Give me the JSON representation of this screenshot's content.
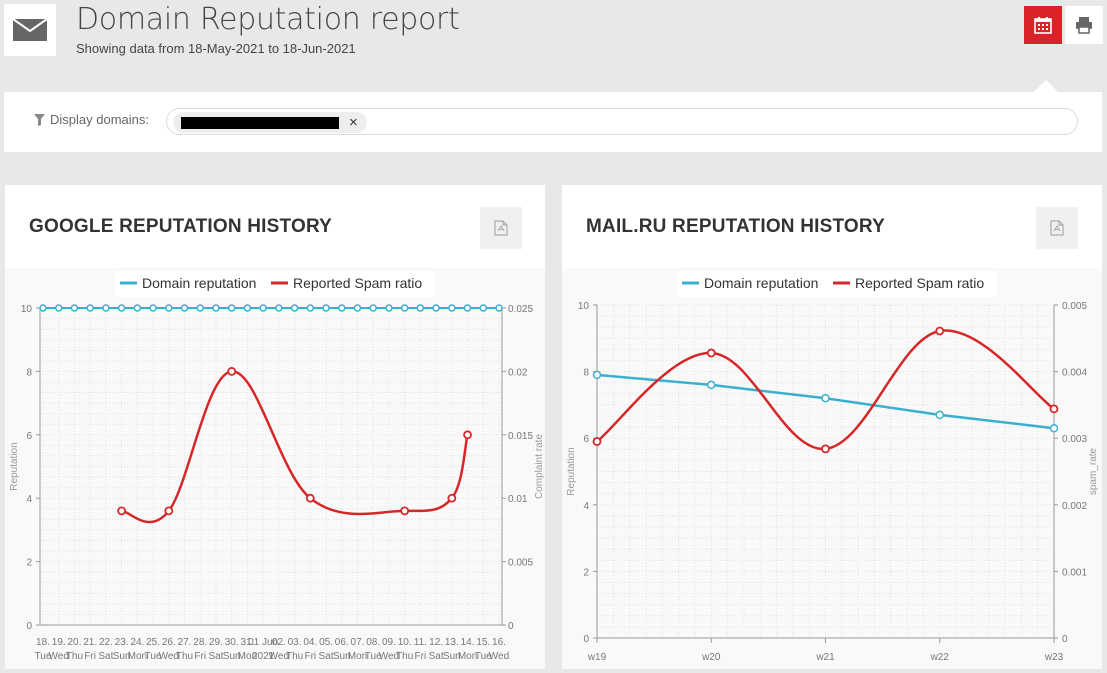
{
  "header": {
    "title": "Domain Reputation report",
    "subtitle": "Showing data from 18-May-2021 to 18-Jun-2021",
    "icon": "envelope-icon",
    "calendar_button_icon": "calendar-icon",
    "print_button_icon": "print-icon",
    "accent_color": "#d9222a"
  },
  "filter": {
    "label": "Display domains:",
    "icon": "filter-icon",
    "chip_value": "redacted",
    "chip_close": "×"
  },
  "colors": {
    "reputation": "#3aafd0",
    "spam": "#d62728"
  },
  "cards": {
    "google": {
      "title": "GOOGLE REPUTATION HISTORY",
      "pdf_icon": "pdf-icon"
    },
    "mail": {
      "title": "MAIL.RU REPUTATION HISTORY",
      "pdf_icon": "pdf-icon"
    }
  },
  "chart_data": [
    {
      "id": "google",
      "type": "line",
      "legend": [
        "Domain reputation",
        "Reported Spam ratio"
      ],
      "legend_position": "top-center",
      "ylabel_left": "Reputation",
      "ylabel_right": "Complaint rate",
      "ylim_left": [
        0,
        10
      ],
      "ylim_right": [
        0,
        0.025
      ],
      "yticks_left": [
        "10",
        "8",
        "6",
        "4",
        "2",
        "0"
      ],
      "yticks_right": [
        "0.025",
        "0.02",
        "0.015",
        "0.01",
        "0.005",
        "0"
      ],
      "grid": true,
      "x_day": [
        "18.",
        "19.",
        "20.",
        "21.",
        "22.",
        "23.",
        "24.",
        "25.",
        "26.",
        "27.",
        "28.",
        "29.",
        "30.",
        "31.",
        "01 Jun",
        "02.",
        "03.",
        "04.",
        "05.",
        "06.",
        "07.",
        "08.",
        "09.",
        "10.",
        "11.",
        "12.",
        "13.",
        "14.",
        "15.",
        "16."
      ],
      "x_weekday": [
        "Tue",
        "Wed",
        "Thu",
        "Fri",
        "Sat",
        "Sun",
        "Mon",
        "Tue",
        "Wed",
        "Thu",
        "Fri",
        "Sat",
        "Sun",
        "Mon",
        "2021",
        "Wed",
        "Thu",
        "Fri",
        "Sat",
        "Sun",
        "Mon",
        "Tue",
        "Wed",
        "Thu",
        "Fri",
        "Sat",
        "Sun",
        "Mon",
        "Tue",
        "Wed"
      ],
      "series": [
        {
          "name": "Domain reputation",
          "axis": "left",
          "values": [
            10,
            10,
            10,
            10,
            10,
            10,
            10,
            10,
            10,
            10,
            10,
            10,
            10,
            10,
            10,
            10,
            10,
            10,
            10,
            10,
            10,
            10,
            10,
            10,
            10,
            10,
            10,
            10,
            10,
            10
          ]
        },
        {
          "name": "Reported Spam ratio",
          "axis": "right",
          "points": [
            {
              "x_index": 5,
              "y": 0.009
            },
            {
              "x_index": 8,
              "y": 0.009
            },
            {
              "x_index": 12,
              "y": 0.02
            },
            {
              "x_index": 17,
              "y": 0.01
            },
            {
              "x_index": 23,
              "y": 0.009
            },
            {
              "x_index": 26,
              "y": 0.01
            },
            {
              "x_index": 27,
              "y": 0.015
            }
          ]
        }
      ]
    },
    {
      "id": "mail",
      "type": "line",
      "legend": [
        "Domain reputation",
        "Reported Spam ratio"
      ],
      "legend_position": "top-center",
      "ylabel_left": "Reputation",
      "ylabel_right": "spam_rate",
      "ylim_left": [
        0,
        10
      ],
      "ylim_right": [
        0,
        0.005
      ],
      "yticks_left": [
        "10",
        "8",
        "6",
        "4",
        "2",
        "0"
      ],
      "yticks_right": [
        "0.005",
        "0.004",
        "0.003",
        "0.002",
        "0.001",
        "0"
      ],
      "grid": true,
      "categories": [
        "w19",
        "w20",
        "w21",
        "w22",
        "w23"
      ],
      "series": [
        {
          "name": "Domain reputation",
          "axis": "left",
          "values": [
            7.9,
            7.6,
            7.2,
            6.7,
            6.3
          ]
        },
        {
          "name": "Reported Spam ratio",
          "axis": "right",
          "values": [
            0.00295,
            0.00428,
            0.00284,
            0.00461,
            0.00344
          ]
        }
      ]
    }
  ]
}
